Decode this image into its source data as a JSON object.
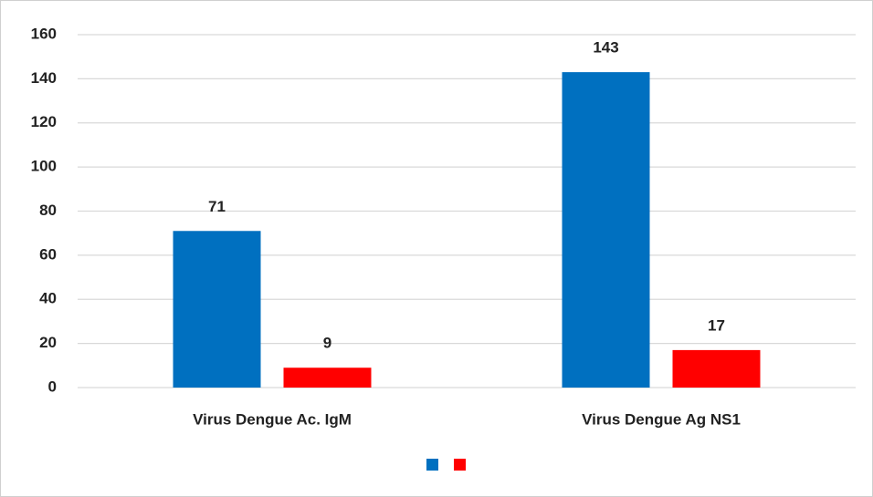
{
  "chart_data": {
    "type": "bar",
    "categories": [
      "Virus Dengue Ac. IgM",
      "Virus Dengue Ag NS1"
    ],
    "series": [
      {
        "color": "#0070c0",
        "values": [
          71,
          143
        ]
      },
      {
        "color": "#ff0000",
        "values": [
          9,
          17
        ]
      }
    ],
    "ylim": [
      0,
      160
    ],
    "yticks": [
      0,
      20,
      40,
      60,
      80,
      100,
      120,
      140,
      160
    ],
    "grid": true
  }
}
